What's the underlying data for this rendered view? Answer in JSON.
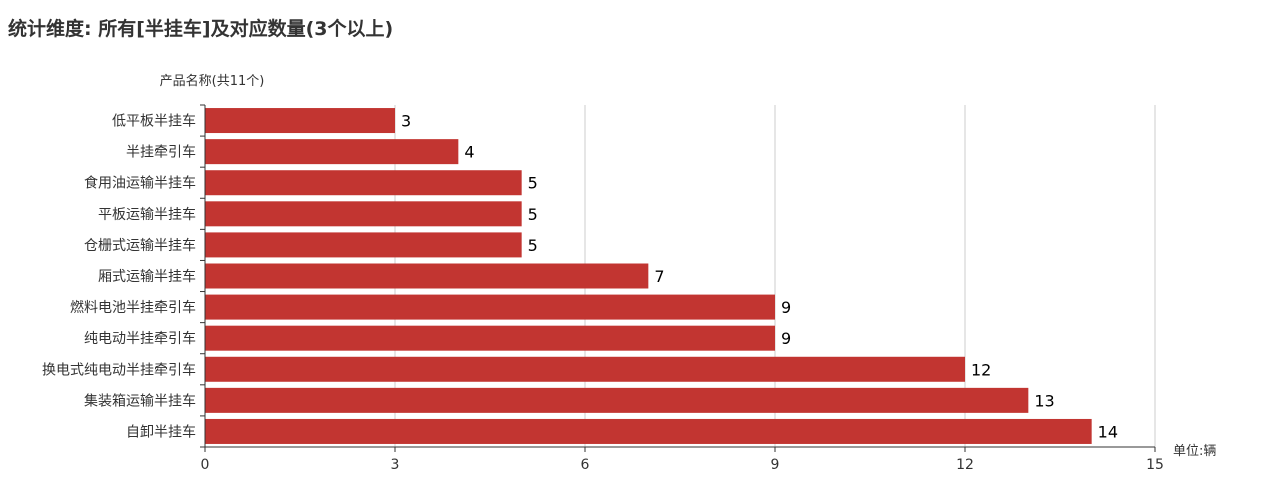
{
  "chart_data": {
    "type": "bar",
    "orientation": "horizontal",
    "title": "统计维度: 所有[半挂车]及对应数量(3个以上)",
    "ylabel": "产品名称(共11个)",
    "xlabel": "单位:辆",
    "categories": [
      "低平板半挂车",
      "半挂牵引车",
      "食用油运输半挂车",
      "平板运输半挂车",
      "仓栅式运输半挂车",
      "厢式运输半挂车",
      "燃料电池半挂牵引车",
      "纯电动半挂牵引车",
      "换电式纯电动半挂牵引车",
      "集装箱运输半挂车",
      "自卸半挂车"
    ],
    "values": [
      3,
      4,
      5,
      5,
      5,
      7,
      9,
      9,
      12,
      13,
      14
    ],
    "xlim": [
      0,
      15
    ],
    "xticks": [
      "0",
      "3",
      "6",
      "9",
      "12",
      "15"
    ],
    "grid": true,
    "bar_color": "#c23531"
  }
}
